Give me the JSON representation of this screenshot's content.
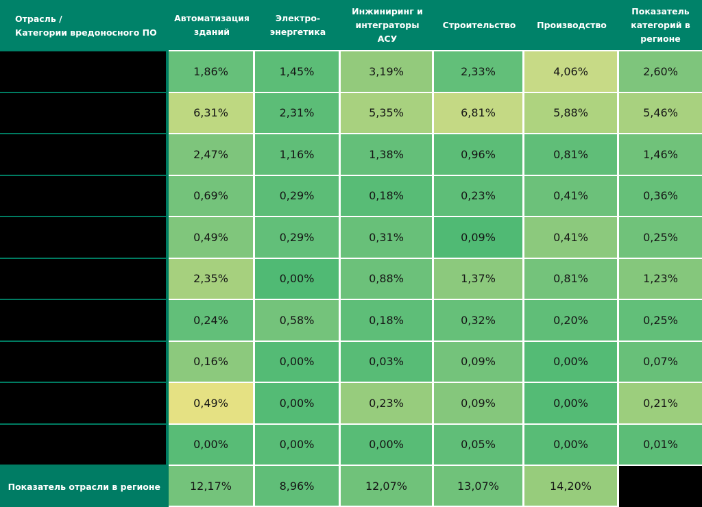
{
  "table": {
    "header": {
      "corner_line1": "Отрасль /",
      "corner_line2": "Категории вредоносного ПО",
      "columns": [
        "Автоматизация зданий",
        "Электро-энергетика",
        "Инжиниринг и интеграторы АСУ",
        "Строительство",
        "Производство",
        "Показатель категорий в регионе"
      ]
    },
    "rows": [
      {
        "label": "",
        "values": [
          "1,86%",
          "1,45%",
          "3,19%",
          "2,33%",
          "4,06%",
          "2,60%"
        ],
        "colors": [
          "#66c07a",
          "#5cbd77",
          "#93ca7c",
          "#62bf79",
          "#c7da86",
          "#7ec57c"
        ]
      },
      {
        "label": "",
        "values": [
          "6,31%",
          "2,31%",
          "5,35%",
          "6,81%",
          "5,88%",
          "5,46%"
        ],
        "colors": [
          "#bed881",
          "#5cbd77",
          "#a8d17f",
          "#c4d984",
          "#aed37f",
          "#a8d17f"
        ]
      },
      {
        "label": "",
        "values": [
          "2,47%",
          "1,16%",
          "1,38%",
          "0,96%",
          "0,81%",
          "1,46%"
        ],
        "colors": [
          "#7ec57c",
          "#60be78",
          "#64bf79",
          "#5cbd77",
          "#60be78",
          "#70c27a"
        ]
      },
      {
        "label": "",
        "values": [
          "0,69%",
          "0,29%",
          "0,18%",
          "0,23%",
          "0,41%",
          "0,36%"
        ],
        "colors": [
          "#74c37b",
          "#5cbd77",
          "#58bc76",
          "#5ebe78",
          "#6cc17a",
          "#66c079"
        ]
      },
      {
        "label": "",
        "values": [
          "0,49%",
          "0,29%",
          "0,31%",
          "0,09%",
          "0,41%",
          "0,25%"
        ],
        "colors": [
          "#80c67c",
          "#62bf79",
          "#68c079",
          "#50ba74",
          "#8cc97d",
          "#70c27a"
        ]
      },
      {
        "label": "",
        "values": [
          "2,35%",
          "0,00%",
          "0,88%",
          "1,37%",
          "0,81%",
          "1,23%"
        ],
        "colors": [
          "#a6d07e",
          "#50ba74",
          "#6cc17a",
          "#8cc97d",
          "#74c37b",
          "#85c77c"
        ]
      },
      {
        "label": "",
        "values": [
          "0,24%",
          "0,58%",
          "0,18%",
          "0,32%",
          "0,20%",
          "0,25%"
        ],
        "colors": [
          "#62bf79",
          "#74c37b",
          "#5ebe78",
          "#66c079",
          "#60be78",
          "#62bf79"
        ]
      },
      {
        "label": "",
        "values": [
          "0,16%",
          "0,00%",
          "0,03%",
          "0,09%",
          "0,00%",
          "0,07%"
        ],
        "colors": [
          "#8cc97d",
          "#54bb75",
          "#58bc76",
          "#74c37b",
          "#54bb75",
          "#68c079"
        ]
      },
      {
        "label": "",
        "values": [
          "0,49%",
          "0,00%",
          "0,23%",
          "0,09%",
          "0,00%",
          "0,21%"
        ],
        "colors": [
          "#e5e183",
          "#54bb75",
          "#97cc7d",
          "#85c77c",
          "#54bb75",
          "#9cce7d"
        ]
      },
      {
        "label": "",
        "values": [
          "0,00%",
          "0,00%",
          "0,00%",
          "0,05%",
          "0,00%",
          "0,01%"
        ],
        "colors": [
          "#58bc76",
          "#58bc76",
          "#58bc76",
          "#60be78",
          "#58bc76",
          "#5cbd77"
        ]
      }
    ],
    "footer": {
      "label": "Показатель отрасли в регионе",
      "values": [
        "12,17%",
        "8,96%",
        "12,07%",
        "13,07%",
        "14,20%"
      ],
      "colors": [
        "#74c37b",
        "#60be78",
        "#70c27a",
        "#70c27a",
        "#97cc7c"
      ]
    }
  },
  "palette": {
    "header_teal": "#008269",
    "footer_label_teal": "#007c64",
    "label_separator_teal": "#007c62",
    "grid_line_white": "#ffffff",
    "redacted_black": "#000000",
    "scale_low_green": "#50ba74",
    "scale_high_yellow": "#e5e183"
  },
  "chart_data": {
    "type": "heatmap",
    "title": "",
    "corner_label": "Отрасль / Категории вредоносного ПО",
    "columns": [
      "Автоматизация зданий",
      "Электро-энергетика",
      "Инжиниринг и интеграторы АСУ",
      "Строительство",
      "Производство",
      "Показатель категорий в регионе"
    ],
    "row_labels": [
      "",
      "",
      "",
      "",
      "",
      "",
      "",
      "",
      "",
      ""
    ],
    "row_labels_redacted": true,
    "units": "%",
    "values": [
      [
        1.86,
        1.45,
        3.19,
        2.33,
        4.06,
        2.6
      ],
      [
        6.31,
        2.31,
        5.35,
        6.81,
        5.88,
        5.46
      ],
      [
        2.47,
        1.16,
        1.38,
        0.96,
        0.81,
        1.46
      ],
      [
        0.69,
        0.29,
        0.18,
        0.23,
        0.41,
        0.36
      ],
      [
        0.49,
        0.29,
        0.31,
        0.09,
        0.41,
        0.25
      ],
      [
        2.35,
        0.0,
        0.88,
        1.37,
        0.81,
        1.23
      ],
      [
        0.24,
        0.58,
        0.18,
        0.32,
        0.2,
        0.25
      ],
      [
        0.16,
        0.0,
        0.03,
        0.09,
        0.0,
        0.07
      ],
      [
        0.49,
        0.0,
        0.23,
        0.09,
        0.0,
        0.21
      ],
      [
        0.0,
        0.0,
        0.0,
        0.05,
        0.0,
        0.01
      ]
    ],
    "footer_row": {
      "label": "Показатель отрасли в регионе",
      "values": [
        12.17,
        8.96,
        12.07,
        13.07,
        14.2,
        null
      ],
      "last_cell_redacted": true
    },
    "color_scale": "green (low) to pale yellow (high)",
    "decimal_separator": ","
  }
}
